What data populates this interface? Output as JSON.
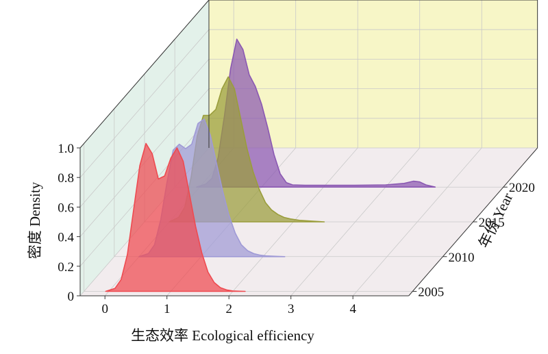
{
  "chart_data": {
    "type": "area",
    "style": "3d-ridgeline",
    "xlabel": "生态效率 Ecological efficiency",
    "ylabel": "密度 Density",
    "zlabel": "年份 Year",
    "xlim": [
      -0.4,
      4.9
    ],
    "ylim": [
      0,
      1.0
    ],
    "x_ticks": [
      "0",
      "1",
      "2",
      "3",
      "4"
    ],
    "y_ticks": [
      "0",
      "0.2",
      "0.4",
      "0.6",
      "0.8",
      "1.0"
    ],
    "year_ticks": [
      "2005",
      "2010",
      "2015",
      "2020"
    ],
    "grid": true,
    "series": [
      {
        "name": "2005",
        "color": "#ee4a50",
        "x": [
          -0.05,
          0.1,
          0.2,
          0.3,
          0.4,
          0.5,
          0.6,
          0.7,
          0.8,
          0.9,
          1.0,
          1.1,
          1.2,
          1.3,
          1.4,
          1.5,
          1.6,
          1.7,
          1.8,
          1.9,
          2.0,
          2.1,
          2.2
        ],
        "y": [
          0.0,
          0.02,
          0.08,
          0.25,
          0.55,
          0.85,
          1.0,
          0.93,
          0.76,
          0.78,
          0.9,
          0.97,
          0.88,
          0.66,
          0.44,
          0.26,
          0.13,
          0.06,
          0.025,
          0.01,
          0.003,
          0.001,
          0.0
        ]
      },
      {
        "name": "2010",
        "color": "#9f9ad6",
        "x": [
          0.0,
          0.15,
          0.25,
          0.35,
          0.45,
          0.55,
          0.65,
          0.75,
          0.85,
          0.95,
          1.05,
          1.15,
          1.25,
          1.35,
          1.45,
          1.55,
          1.65,
          1.75,
          1.85,
          1.95,
          2.05,
          2.2,
          2.35
        ],
        "y": [
          0.0,
          0.02,
          0.08,
          0.25,
          0.5,
          0.72,
          0.76,
          0.73,
          0.76,
          0.9,
          0.93,
          0.82,
          0.63,
          0.44,
          0.28,
          0.16,
          0.08,
          0.04,
          0.02,
          0.01,
          0.005,
          0.002,
          0.0
        ]
      },
      {
        "name": "2015",
        "color": "#9a9d3c",
        "x": [
          0.0,
          0.15,
          0.25,
          0.35,
          0.45,
          0.55,
          0.65,
          0.75,
          0.85,
          0.95,
          1.05,
          1.15,
          1.25,
          1.35,
          1.45,
          1.55,
          1.65,
          1.75,
          1.85,
          1.95,
          2.1,
          2.3,
          2.5
        ],
        "y": [
          0.0,
          0.03,
          0.1,
          0.3,
          0.58,
          0.72,
          0.72,
          0.76,
          0.9,
          0.98,
          0.9,
          0.7,
          0.5,
          0.34,
          0.22,
          0.13,
          0.08,
          0.05,
          0.03,
          0.02,
          0.01,
          0.005,
          0.0
        ]
      },
      {
        "name": "2020",
        "color": "#8a58b2",
        "x": [
          -0.05,
          0.1,
          0.2,
          0.3,
          0.4,
          0.5,
          0.6,
          0.7,
          0.8,
          0.9,
          1.0,
          1.1,
          1.2,
          1.3,
          1.4,
          1.5,
          1.7,
          2.0,
          2.5,
          3.0,
          3.3,
          3.45,
          3.55,
          3.65,
          3.8
        ],
        "y": [
          0.0,
          0.02,
          0.06,
          0.2,
          0.48,
          0.8,
          1.0,
          0.93,
          0.76,
          0.68,
          0.56,
          0.4,
          0.22,
          0.09,
          0.03,
          0.015,
          0.012,
          0.012,
          0.012,
          0.015,
          0.025,
          0.04,
          0.035,
          0.015,
          0.0
        ]
      }
    ]
  }
}
